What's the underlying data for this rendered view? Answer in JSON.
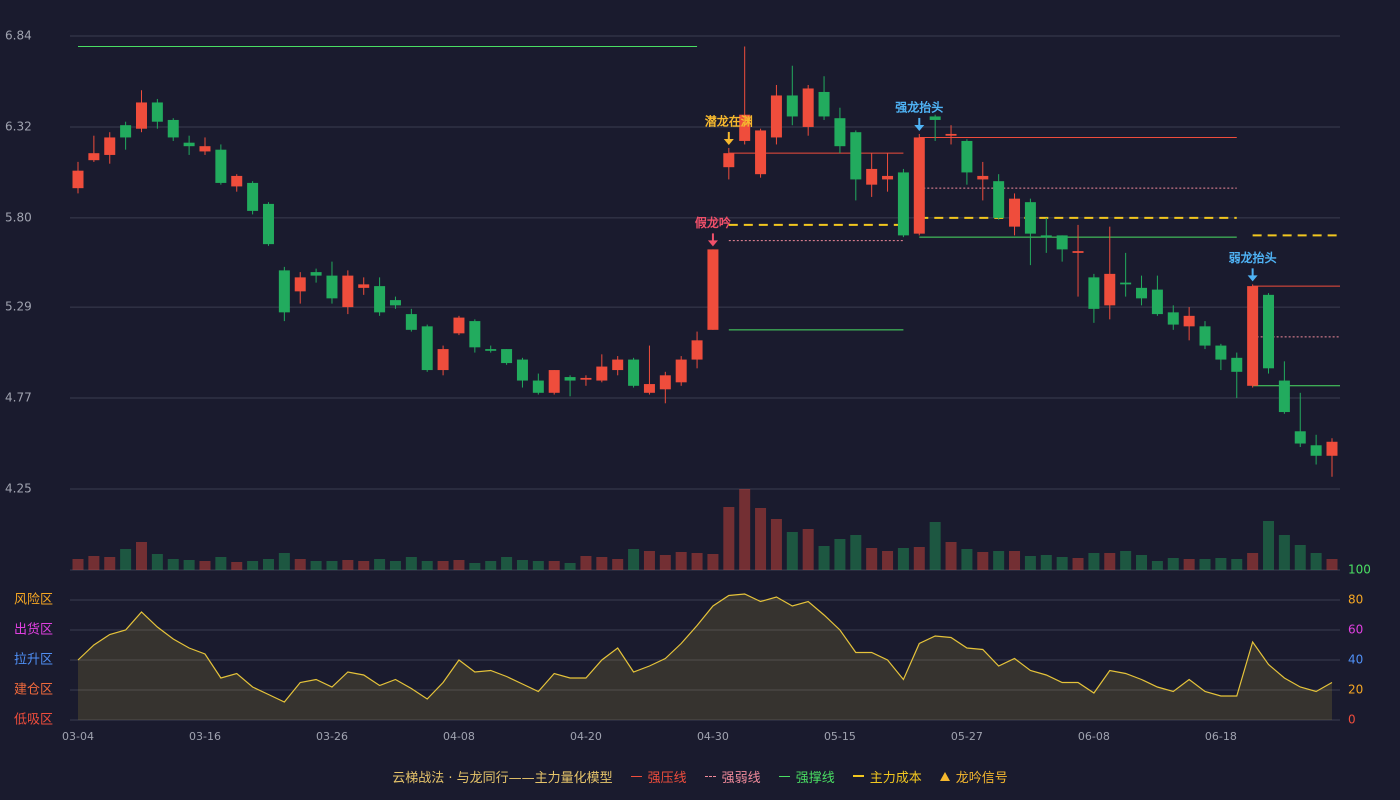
{
  "chart_data": {
    "type": "candlestick",
    "categories": [
      "03-04",
      null,
      null,
      null,
      null,
      null,
      null,
      null,
      "03-16",
      null,
      null,
      null,
      null,
      null,
      null,
      null,
      "03-26",
      null,
      null,
      null,
      null,
      null,
      null,
      null,
      "04-08",
      null,
      null,
      null,
      null,
      null,
      null,
      null,
      "04-20",
      null,
      null,
      null,
      null,
      null,
      null,
      null,
      "04-30",
      null,
      null,
      null,
      null,
      null,
      null,
      null,
      "05-15",
      null,
      null,
      null,
      null,
      null,
      null,
      null,
      "05-27",
      null,
      null,
      null,
      null,
      null,
      null,
      null,
      "06-08",
      null,
      null,
      null,
      null,
      null,
      null,
      null,
      "06-18",
      null,
      null,
      null,
      null,
      null,
      null,
      null
    ],
    "open": [
      5.97,
      6.13,
      6.16,
      6.33,
      6.31,
      6.46,
      6.36,
      6.23,
      6.18,
      6.19,
      5.98,
      6.0,
      5.88,
      5.5,
      5.38,
      5.49,
      5.47,
      5.29,
      5.4,
      5.41,
      5.33,
      5.25,
      5.18,
      4.93,
      5.14,
      5.21,
      5.05,
      5.05,
      4.99,
      4.87,
      4.8,
      4.89,
      4.875,
      4.87,
      4.93,
      4.99,
      4.8,
      4.82,
      4.86,
      4.99,
      5.16,
      6.09,
      6.24,
      6.05,
      6.26,
      6.5,
      6.32,
      6.52,
      6.37,
      6.29,
      5.99,
      6.02,
      6.06,
      5.71,
      6.38,
      6.27,
      6.24,
      6.02,
      6.01,
      5.75,
      5.89,
      5.7,
      5.7,
      5.6,
      5.46,
      5.3,
      5.43,
      5.4,
      5.39,
      5.26,
      5.18,
      5.18,
      5.07,
      5.0,
      4.84,
      5.36,
      4.87,
      4.58,
      4.5,
      4.44
    ],
    "high": [
      6.12,
      6.27,
      6.29,
      6.35,
      6.53,
      6.48,
      6.37,
      6.27,
      6.26,
      6.22,
      6.05,
      6.01,
      5.89,
      5.52,
      5.49,
      5.51,
      5.55,
      5.5,
      5.46,
      5.46,
      5.35,
      5.28,
      5.19,
      5.07,
      5.24,
      5.22,
      5.07,
      5.05,
      5.0,
      4.91,
      4.93,
      4.9,
      4.9,
      5.02,
      5.01,
      5.0,
      5.07,
      4.92,
      5.01,
      5.15,
      5.62,
      6.2,
      6.78,
      6.31,
      6.56,
      6.67,
      6.56,
      6.61,
      6.43,
      6.3,
      6.17,
      6.17,
      6.08,
      6.28,
      6.39,
      6.33,
      6.25,
      6.12,
      6.05,
      5.94,
      5.91,
      5.8,
      5.7,
      5.76,
      5.48,
      5.75,
      5.6,
      5.47,
      5.47,
      5.3,
      5.29,
      5.21,
      5.08,
      5.03,
      5.42,
      5.37,
      4.98,
      4.8,
      4.56,
      4.54
    ],
    "low": [
      5.94,
      6.12,
      6.11,
      6.19,
      6.29,
      6.31,
      6.24,
      6.16,
      6.16,
      5.99,
      5.95,
      5.82,
      5.64,
      5.21,
      5.31,
      5.43,
      5.31,
      5.25,
      5.36,
      5.24,
      5.28,
      5.15,
      4.92,
      4.9,
      5.13,
      5.03,
      5.03,
      4.96,
      4.83,
      4.79,
      4.79,
      4.78,
      4.84,
      4.86,
      4.9,
      4.83,
      4.79,
      4.74,
      4.84,
      4.94,
      5.16,
      6.02,
      6.22,
      6.03,
      6.22,
      6.33,
      6.27,
      6.36,
      6.17,
      5.9,
      5.92,
      5.95,
      5.69,
      5.7,
      6.24,
      6.22,
      5.99,
      5.9,
      5.79,
      5.7,
      5.53,
      5.6,
      5.55,
      5.35,
      5.2,
      5.22,
      5.35,
      5.3,
      5.24,
      5.16,
      5.1,
      5.05,
      4.93,
      4.77,
      4.83,
      4.91,
      4.68,
      4.49,
      4.39,
      4.32
    ],
    "close": [
      6.07,
      6.17,
      6.26,
      6.26,
      6.46,
      6.35,
      6.26,
      6.21,
      6.21,
      6.0,
      6.04,
      5.84,
      5.65,
      5.26,
      5.46,
      5.47,
      5.34,
      5.47,
      5.42,
      5.26,
      5.3,
      5.16,
      4.93,
      5.05,
      5.23,
      5.06,
      5.04,
      4.97,
      4.87,
      4.8,
      4.93,
      4.87,
      4.885,
      4.95,
      4.99,
      4.84,
      4.85,
      4.9,
      4.99,
      5.1,
      5.62,
      6.17,
      6.39,
      6.3,
      6.5,
      6.38,
      6.54,
      6.38,
      6.21,
      6.02,
      6.08,
      6.04,
      5.7,
      6.26,
      6.36,
      6.28,
      6.06,
      6.04,
      5.8,
      5.91,
      5.71,
      5.69,
      5.62,
      5.61,
      5.28,
      5.48,
      5.42,
      5.34,
      5.25,
      5.19,
      5.24,
      5.07,
      4.99,
      4.92,
      5.41,
      4.94,
      4.69,
      4.51,
      4.44,
      4.52
    ],
    "volume": [
      11,
      14,
      13,
      21,
      28,
      16,
      11,
      10,
      9,
      13,
      8,
      9,
      11,
      17,
      11,
      9,
      9,
      10,
      9,
      11,
      9,
      13,
      9,
      9,
      10,
      7,
      9,
      13,
      10,
      9,
      9,
      7,
      14,
      13,
      11,
      21,
      19,
      15,
      18,
      17,
      16,
      63,
      81,
      62,
      51,
      38,
      41,
      24,
      31,
      35,
      22,
      19,
      22,
      23,
      48,
      28,
      21,
      18,
      19,
      19,
      14,
      15,
      13,
      12,
      17,
      17,
      19,
      15,
      9,
      12,
      11,
      11,
      12,
      11,
      17,
      49,
      35,
      25,
      17,
      11
    ],
    "up_color": "#ef4d3c",
    "down_color": "#22ab5e",
    "ylim": [
      4.25,
      6.84
    ],
    "yticks": [
      {
        "value": 4.25,
        "label": "4.25"
      },
      4.77,
      5.29,
      {
        "value": 5.8,
        "label": "5.80"
      },
      6.32,
      6.84
    ],
    "grid": true,
    "lines": [
      {
        "name": "强压线",
        "color": "#ef4d3c",
        "style": "solid",
        "segments": [
          {
            "start": 41,
            "end": 52,
            "value": 6.17
          },
          {
            "start": 53,
            "end": 73,
            "value": 6.26
          },
          {
            "start": 74,
            "end": 79,
            "value": 5.41
          }
        ]
      },
      {
        "name": "强弱线",
        "color": "#f08a9a",
        "style": "dotted",
        "segments": [
          {
            "start": 41,
            "end": 52,
            "value": 5.67
          },
          {
            "start": 53,
            "end": 73,
            "value": 5.97
          },
          {
            "start": 74,
            "end": 79,
            "value": 5.12
          }
        ]
      },
      {
        "name": "强撑线",
        "color": "#4ade63",
        "style": "solid",
        "segments": [
          {
            "start": 0,
            "end": 39,
            "value": 6.78
          },
          {
            "start": 41,
            "end": 52,
            "value": 5.16
          },
          {
            "start": 53,
            "end": 73,
            "value": 5.69
          },
          {
            "start": 74,
            "end": 79,
            "value": 4.84
          }
        ]
      },
      {
        "name": "主力成本",
        "color": "#f2c71f",
        "style": "dashed",
        "segments": [
          {
            "start": 41,
            "end": 52,
            "value": 5.76
          },
          {
            "start": 53,
            "end": 73,
            "value": 5.8
          },
          {
            "start": 74,
            "end": 79,
            "value": 5.7
          }
        ]
      }
    ],
    "signals": [
      {
        "label": "假龙吟",
        "index": 40,
        "color": "#f0506a"
      },
      {
        "label": "潜龙在渊",
        "index": 41,
        "color": "#f5b82e"
      },
      {
        "label": "强龙抬头",
        "index": 53,
        "color": "#4fb3f5"
      },
      {
        "label": "弱龙抬头",
        "index": 74,
        "color": "#4fb3f5"
      }
    ],
    "indicator": {
      "values": [
        40,
        50,
        57,
        60,
        72,
        62,
        54,
        48,
        44,
        28,
        31,
        22,
        17,
        12,
        25,
        27,
        22,
        32,
        30,
        23,
        27,
        21,
        14,
        25,
        40,
        32,
        33,
        29,
        24,
        19,
        31,
        28,
        28,
        40,
        48,
        32,
        36,
        41,
        51,
        63,
        76,
        83,
        84,
        79,
        82,
        76,
        79,
        70,
        60,
        45,
        45,
        40,
        27,
        51,
        56,
        55,
        48,
        47,
        36,
        41,
        33,
        30,
        25,
        25,
        18,
        33,
        31,
        27,
        22,
        19,
        27,
        19,
        16,
        16,
        52,
        37,
        28,
        22,
        19,
        25
      ],
      "color": "#e5c33a",
      "ylim": [
        0,
        100
      ],
      "yticks": [
        0,
        20,
        40,
        60,
        80,
        100
      ],
      "tick_colors": [
        "#ef4d3c",
        "#f5a623",
        "#4f8ff5",
        "#e040e0",
        "#f5a623",
        "#4ade63"
      ],
      "zones": [
        {
          "label": "低吸区",
          "value": 0,
          "color": "#ef4d3c"
        },
        {
          "label": "建仓区",
          "value": 20,
          "color": "#f06a3c"
        },
        {
          "label": "拉升区",
          "value": 40,
          "color": "#4f8ff5"
        },
        {
          "label": "出货区",
          "value": 60,
          "color": "#e040e0"
        },
        {
          "label": "风险区",
          "value": 80,
          "color": "#f5a623"
        }
      ]
    },
    "legend_title": "云梯战法 · 与龙同行——主力量化模型",
    "legend_title_color": "#e6c46a",
    "legend_signal": {
      "name": "龙吟信号",
      "color": "#f5b82e"
    }
  }
}
